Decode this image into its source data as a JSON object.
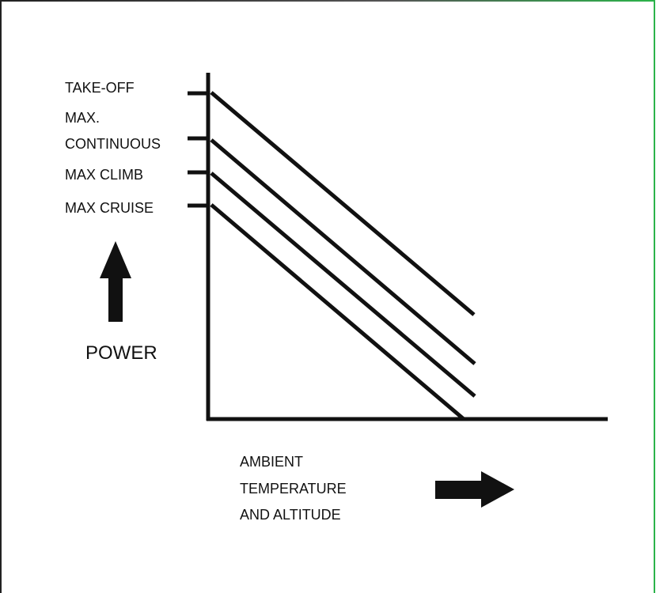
{
  "levels": [
    [
      "TAKE-OFF"
    ],
    [
      "MAX.",
      "CONTINUOUS"
    ],
    [
      "MAX CLIMB"
    ],
    [
      "MAX CRUISE"
    ]
  ],
  "y_axis_label": "POWER",
  "x_axis_label": [
    "AMBIENT",
    "TEMPERATURE",
    "AND ALTITUDE"
  ]
}
